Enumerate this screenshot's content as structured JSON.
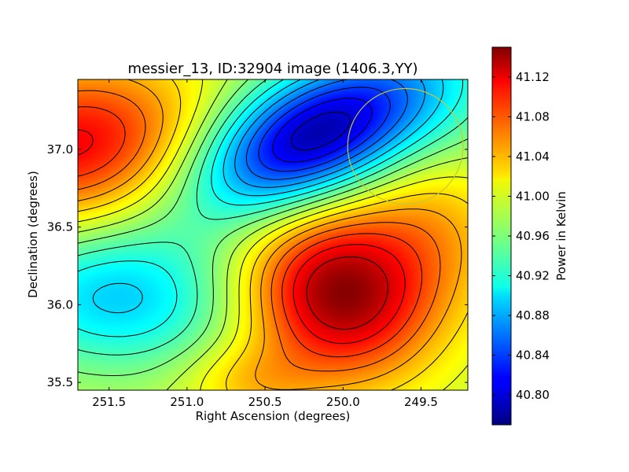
{
  "chart_data": {
    "type": "heatmap",
    "title": "messier_13, ID:32904 image (1406.3,YY)",
    "xlabel": "Right Ascension (degrees)",
    "ylabel": "Declination (degrees)",
    "xlim": [
      251.7,
      249.2
    ],
    "ylim": [
      35.45,
      37.45
    ],
    "x_ticks": [
      251.5,
      251.0,
      250.5,
      250.0,
      249.5
    ],
    "x_tick_labels": [
      "251.5",
      "251.0",
      "250.5",
      "250.0",
      "249.5"
    ],
    "y_ticks": [
      35.5,
      36.0,
      36.5,
      37.0
    ],
    "y_tick_labels": [
      "35.5",
      "36.0",
      "36.5",
      "37.0"
    ],
    "colormap": "jet",
    "colorbar": {
      "label": "Power in Kelvin",
      "range": [
        40.77,
        41.15
      ],
      "ticks": [
        40.8,
        40.84,
        40.88,
        40.92,
        40.96,
        41.0,
        41.04,
        41.08,
        41.12
      ],
      "tick_labels": [
        "40.80",
        "40.84",
        "40.88",
        "40.92",
        "40.96",
        "41.00",
        "41.04",
        "41.08",
        "41.12"
      ]
    },
    "features": [
      {
        "kind": "maximum",
        "ra": 251.7,
        "dec": 37.02,
        "value": 41.09
      },
      {
        "kind": "maximum",
        "ra": 250.05,
        "dec": 36.07,
        "value": 41.14
      },
      {
        "kind": "minimum",
        "ra": 250.25,
        "dec": 36.97,
        "value": 40.78
      },
      {
        "kind": "minimum",
        "ra": 251.4,
        "dec": 36.1,
        "value": 40.89
      }
    ],
    "contour_levels": [
      40.8,
      40.82,
      40.84,
      40.86,
      40.88,
      40.9,
      40.92,
      40.94,
      40.96,
      40.98,
      41.0,
      41.02,
      41.04,
      41.06,
      41.08,
      41.1,
      41.12
    ],
    "circle_marker": {
      "ra": 249.6,
      "dec": 37.02,
      "radius_deg": 0.37,
      "color": "#c8c832"
    }
  }
}
